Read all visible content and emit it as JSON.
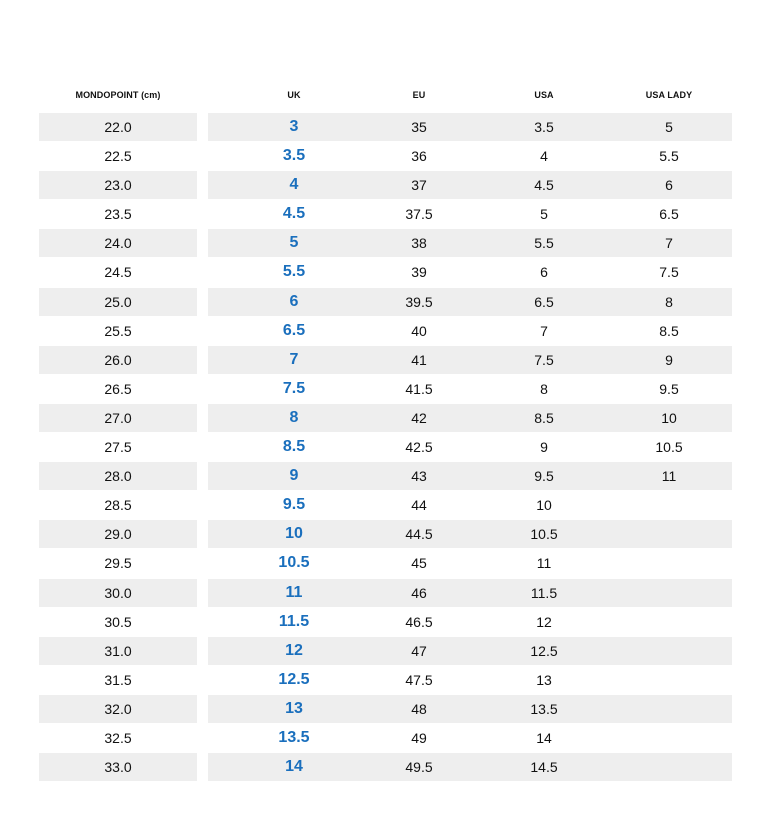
{
  "headers": {
    "mondopoint": "MONDOPOINT (cm)",
    "uk": "UK",
    "eu": "EU",
    "usa": "USA",
    "usa_lady": "USA LADY"
  },
  "colors": {
    "row_shade": "#eeeeee",
    "uk_accent": "#1a6fbd",
    "text": "#111111"
  },
  "rows": [
    {
      "mondopoint": "22.0",
      "uk": "3",
      "eu": "35",
      "usa": "3.5",
      "usa_lady": "5"
    },
    {
      "mondopoint": "22.5",
      "uk": "3.5",
      "eu": "36",
      "usa": "4",
      "usa_lady": "5.5"
    },
    {
      "mondopoint": "23.0",
      "uk": "4",
      "eu": "37",
      "usa": "4.5",
      "usa_lady": "6"
    },
    {
      "mondopoint": "23.5",
      "uk": "4.5",
      "eu": "37.5",
      "usa": "5",
      "usa_lady": "6.5"
    },
    {
      "mondopoint": "24.0",
      "uk": "5",
      "eu": "38",
      "usa": "5.5",
      "usa_lady": "7"
    },
    {
      "mondopoint": "24.5",
      "uk": "5.5",
      "eu": "39",
      "usa": "6",
      "usa_lady": "7.5"
    },
    {
      "mondopoint": "25.0",
      "uk": "6",
      "eu": "39.5",
      "usa": "6.5",
      "usa_lady": "8"
    },
    {
      "mondopoint": "25.5",
      "uk": "6.5",
      "eu": "40",
      "usa": "7",
      "usa_lady": "8.5"
    },
    {
      "mondopoint": "26.0",
      "uk": "7",
      "eu": "41",
      "usa": "7.5",
      "usa_lady": "9"
    },
    {
      "mondopoint": "26.5",
      "uk": "7.5",
      "eu": "41.5",
      "usa": "8",
      "usa_lady": "9.5"
    },
    {
      "mondopoint": "27.0",
      "uk": "8",
      "eu": "42",
      "usa": "8.5",
      "usa_lady": "10"
    },
    {
      "mondopoint": "27.5",
      "uk": "8.5",
      "eu": "42.5",
      "usa": "9",
      "usa_lady": "10.5"
    },
    {
      "mondopoint": "28.0",
      "uk": "9",
      "eu": "43",
      "usa": "9.5",
      "usa_lady": "11"
    },
    {
      "mondopoint": "28.5",
      "uk": "9.5",
      "eu": "44",
      "usa": "10",
      "usa_lady": ""
    },
    {
      "mondopoint": "29.0",
      "uk": "10",
      "eu": "44.5",
      "usa": "10.5",
      "usa_lady": ""
    },
    {
      "mondopoint": "29.5",
      "uk": "10.5",
      "eu": "45",
      "usa": "11",
      "usa_lady": ""
    },
    {
      "mondopoint": "30.0",
      "uk": "11",
      "eu": "46",
      "usa": "11.5",
      "usa_lady": ""
    },
    {
      "mondopoint": "30.5",
      "uk": "11.5",
      "eu": "46.5",
      "usa": "12",
      "usa_lady": ""
    },
    {
      "mondopoint": "31.0",
      "uk": "12",
      "eu": "47",
      "usa": "12.5",
      "usa_lady": ""
    },
    {
      "mondopoint": "31.5",
      "uk": "12.5",
      "eu": "47.5",
      "usa": "13",
      "usa_lady": ""
    },
    {
      "mondopoint": "32.0",
      "uk": "13",
      "eu": "48",
      "usa": "13.5",
      "usa_lady": ""
    },
    {
      "mondopoint": "32.5",
      "uk": "13.5",
      "eu": "49",
      "usa": "14",
      "usa_lady": ""
    },
    {
      "mondopoint": "33.0",
      "uk": "14",
      "eu": "49.5",
      "usa": "14.5",
      "usa_lady": ""
    }
  ]
}
